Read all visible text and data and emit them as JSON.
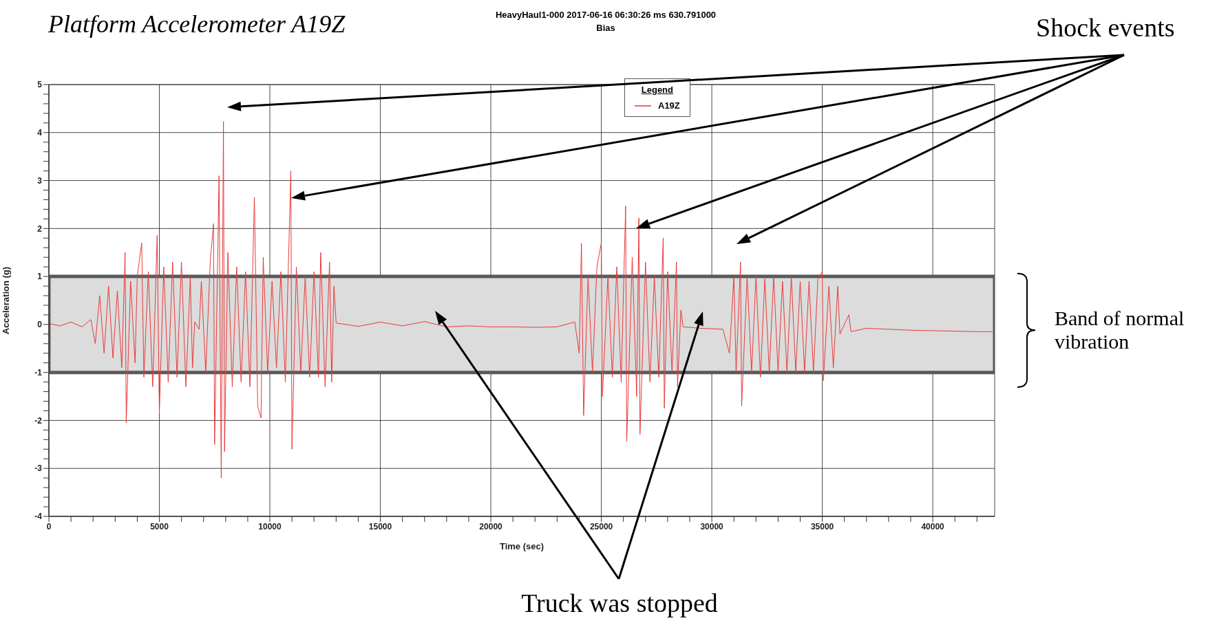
{
  "chart_data": {
    "type": "line",
    "title": "HeavyHaul1-000 2017-06-16 06:30:26 ms 630.791000",
    "subtitle": "Bias",
    "xlabel": "Time (sec)",
    "ylabel": "Acceleration (g)",
    "legend_title": "Legend",
    "annotations": [
      "Platform Accelerometer A19Z",
      "Shock events",
      "Truck was stopped"
    ],
    "x": [
      0,
      500,
      1000,
      1500,
      1900,
      2100,
      2300,
      2500,
      2700,
      2900,
      3100,
      3300,
      3450,
      3500,
      3700,
      3900,
      4000,
      4200,
      4300,
      4500,
      4700,
      4900,
      5000,
      5200,
      5400,
      5600,
      5800,
      6000,
      6200,
      6400,
      6500,
      6600,
      6800,
      6900,
      7100,
      7300,
      7450,
      7500,
      7700,
      7800,
      7900,
      7950,
      8100,
      8300,
      8500,
      8700,
      8900,
      9100,
      9300,
      9450,
      9600,
      9700,
      9900,
      10100,
      10300,
      10500,
      10700,
      10950,
      11000,
      11200,
      11400,
      11600,
      11800,
      12000,
      12200,
      12300,
      12500,
      12700,
      12800,
      12900,
      13000,
      14000,
      15000,
      16000,
      17000,
      18000,
      19000,
      20000,
      21000,
      22000,
      23000,
      23800,
      24000,
      24100,
      24200,
      24400,
      24600,
      24800,
      25000,
      25050,
      25300,
      25500,
      25700,
      25900,
      26100,
      26150,
      26400,
      26600,
      26700,
      26750,
      27000,
      27200,
      27400,
      27600,
      27800,
      27850,
      28000,
      28200,
      28400,
      28450,
      28600,
      28700,
      29500,
      30500,
      30800,
      31000,
      31100,
      31300,
      31350,
      31600,
      31800,
      32000,
      32200,
      32400,
      32600,
      32800,
      33000,
      33200,
      33400,
      33600,
      33800,
      34000,
      34200,
      34400,
      34600,
      34800,
      35000,
      35050,
      35300,
      35500,
      35700,
      35800,
      36200,
      36300,
      37000,
      38000,
      39000,
      40000,
      41000,
      42000,
      42700
    ],
    "series": [
      {
        "name": "A19Z",
        "color": "#e83a3a",
        "values": [
          0.02,
          -0.03,
          0.05,
          -0.05,
          0.1,
          -0.4,
          0.6,
          -0.6,
          0.8,
          -0.7,
          0.7,
          -0.9,
          1.5,
          -2.05,
          0.9,
          -0.8,
          1.0,
          1.7,
          -1.1,
          1.1,
          -1.3,
          1.86,
          -1.85,
          1.2,
          -1.2,
          1.3,
          -1.1,
          1.3,
          -1.3,
          1.0,
          -0.9,
          0.05,
          -0.1,
          0.9,
          -1.0,
          1.3,
          2.1,
          -2.5,
          3.1,
          -3.2,
          4.23,
          -2.65,
          1.5,
          -1.3,
          1.2,
          -1.2,
          1.1,
          -1.3,
          2.65,
          -1.7,
          -1.95,
          1.4,
          -1.0,
          0.9,
          -0.9,
          1.1,
          -1.2,
          3.2,
          -2.6,
          1.2,
          -1.0,
          1.0,
          -1.1,
          1.1,
          -1.1,
          1.5,
          -1.3,
          1.3,
          -1.2,
          0.8,
          0.03,
          -0.04,
          0.05,
          -0.03,
          0.06,
          -0.05,
          -0.03,
          -0.05,
          -0.05,
          -0.06,
          -0.05,
          0.05,
          -0.6,
          1.69,
          -1.9,
          1.0,
          -1.0,
          1.2,
          1.7,
          -1.5,
          1.0,
          -1.1,
          1.2,
          -1.2,
          2.47,
          -2.44,
          1.4,
          -1.5,
          2.22,
          -2.29,
          1.3,
          -1.2,
          1.0,
          -1.1,
          1.8,
          -1.75,
          1.1,
          -1.0,
          1.3,
          -1.3,
          0.3,
          -0.05,
          -0.08,
          -0.1,
          -0.6,
          1.0,
          -1.0,
          1.3,
          -1.7,
          1.0,
          -1.0,
          1.0,
          -1.1,
          0.95,
          -1.0,
          1.0,
          -1.0,
          0.9,
          -1.0,
          1.0,
          -1.0,
          0.9,
          -1.0,
          0.9,
          -1.0,
          0.95,
          1.1,
          -1.17,
          0.8,
          -0.9,
          0.8,
          -0.2,
          0.2,
          -0.15,
          -0.08,
          -0.1,
          -0.12,
          -0.13,
          -0.14,
          -0.15,
          -0.15
        ]
      }
    ],
    "xlim": [
      0,
      42800
    ],
    "xticks": [
      0,
      {
        "value": 1000,
        "label": null
      },
      {
        "value": 2000,
        "label": null
      },
      {
        "value": 3000,
        "label": null
      },
      {
        "value": 4000,
        "label": null
      },
      5000,
      {
        "value": 6000,
        "label": null
      },
      {
        "value": 7000,
        "label": null
      },
      {
        "value": 8000,
        "label": null
      },
      {
        "value": 9000,
        "label": null
      },
      10000,
      {
        "value": 11000,
        "label": null
      },
      {
        "value": 12000,
        "label": null
      },
      {
        "value": 13000,
        "label": null
      },
      {
        "value": 14000,
        "label": null
      },
      15000,
      {
        "value": 16000,
        "label": null
      },
      {
        "value": 17000,
        "label": null
      },
      {
        "value": 18000,
        "label": null
      },
      {
        "value": 19000,
        "label": null
      },
      20000,
      {
        "value": 21000,
        "label": null
      },
      {
        "value": 22000,
        "label": null
      },
      {
        "value": 23000,
        "label": null
      },
      {
        "value": 24000,
        "label": null
      },
      25000,
      {
        "value": 26000,
        "label": null
      },
      {
        "value": 27000,
        "label": null
      },
      {
        "value": 28000,
        "label": null
      },
      {
        "value": 29000,
        "label": null
      },
      30000,
      {
        "value": 31000,
        "label": null
      },
      {
        "value": 32000,
        "label": null
      },
      {
        "value": 33000,
        "label": null
      },
      {
        "value": 34000,
        "label": null
      },
      35000,
      {
        "value": 36000,
        "label": null
      },
      {
        "value": 37000,
        "label": null
      },
      {
        "value": 38000,
        "label": null
      },
      {
        "value": 39000,
        "label": null
      },
      40000,
      {
        "value": 41000,
        "label": null
      },
      {
        "value": 42000,
        "label": null
      }
    ],
    "ylim": [
      -4,
      5
    ],
    "yticks": [
      -4,
      {
        "value": -3.8,
        "label": null
      },
      {
        "value": -3.6,
        "label": null
      },
      {
        "value": -3.4,
        "label": null
      },
      {
        "value": -3.2,
        "label": null
      },
      -3,
      {
        "value": -2.8,
        "label": null
      },
      {
        "value": -2.6,
        "label": null
      },
      {
        "value": -2.4,
        "label": null
      },
      {
        "value": -2.2,
        "label": null
      },
      -2,
      {
        "value": -1.8,
        "label": null
      },
      {
        "value": -1.6,
        "label": null
      },
      {
        "value": -1.4,
        "label": null
      },
      {
        "value": -1.2,
        "label": null
      },
      -1,
      {
        "value": -0.8,
        "label": null
      },
      {
        "value": -0.6,
        "label": null
      },
      {
        "value": -0.4,
        "label": null
      },
      {
        "value": -0.2,
        "label": null
      },
      0,
      {
        "value": 0.2,
        "label": null
      },
      {
        "value": 0.4,
        "label": null
      },
      {
        "value": 0.6,
        "label": null
      },
      {
        "value": 0.8,
        "label": null
      },
      1,
      {
        "value": 1.2,
        "label": null
      },
      {
        "value": 1.4,
        "label": null
      },
      {
        "value": 1.6,
        "label": null
      },
      {
        "value": 1.8,
        "label": null
      },
      2,
      {
        "value": 2.2,
        "label": null
      },
      {
        "value": 2.4,
        "label": null
      },
      {
        "value": 2.6,
        "label": null
      },
      {
        "value": 2.8,
        "label": null
      },
      3,
      {
        "value": 3.2,
        "label": null
      },
      {
        "value": 3.4,
        "label": null
      },
      {
        "value": 3.6,
        "label": null
      },
      {
        "value": 3.8,
        "label": null
      },
      4,
      {
        "value": 4.2,
        "label": null
      },
      {
        "value": 4.4,
        "label": null
      },
      {
        "value": 4.6,
        "label": null
      },
      {
        "value": 4.8,
        "label": null
      },
      5
    ],
    "bands": [
      {
        "axis": "y",
        "from": -1,
        "to": 1,
        "label": "Band of normal vibration",
        "color": "#dcdcdc"
      }
    ],
    "grid": true,
    "legend": "top"
  }
}
